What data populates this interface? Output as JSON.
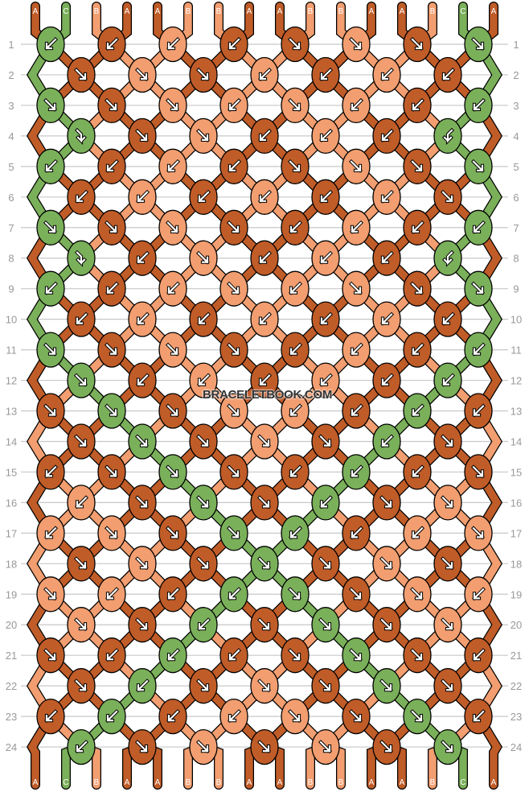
{
  "colors": {
    "A": "#c05c28",
    "B": "#f29e70",
    "C": "#7ab05a"
  },
  "watermark": "BRACELETBOOK.COM",
  "top_labels": [
    "A",
    "C",
    "B",
    "A",
    "A",
    "B",
    "B",
    "A",
    "A",
    "B",
    "B",
    "A",
    "A",
    "B",
    "C",
    "A"
  ],
  "bottom_labels": [
    "A",
    "C",
    "B",
    "A",
    "A",
    "B",
    "B",
    "A",
    "A",
    "B",
    "B",
    "A",
    "A",
    "B",
    "C",
    "A"
  ],
  "rows": [
    {
      "n": "1",
      "knots": [
        "C",
        "A",
        "B",
        "A",
        "A",
        "B",
        "A",
        "C"
      ],
      "dirs": [
        "L",
        "L",
        "L",
        "L",
        "R",
        "R",
        "R",
        "R"
      ]
    },
    {
      "n": "2",
      "knots": [
        "A",
        "B",
        "A",
        "B",
        "A",
        "B",
        "A"
      ],
      "dirs": [
        "R",
        "R",
        "R",
        "L",
        "L",
        "L",
        "L"
      ]
    },
    {
      "n": "3",
      "knots": [
        "C",
        "A",
        "B",
        "B",
        "B",
        "B",
        "A",
        "C"
      ],
      "dirs": [
        "R",
        "R",
        "R",
        "L",
        "R",
        "L",
        "L",
        "L"
      ]
    },
    {
      "n": "4",
      "knots": [
        "C",
        "A",
        "B",
        "A",
        "B",
        "A",
        "C"
      ],
      "dirs": [
        "RL",
        "R",
        "R",
        "L",
        "L",
        "L",
        "LR"
      ]
    },
    {
      "n": "5",
      "knots": [
        "C",
        "A",
        "B",
        "A",
        "A",
        "B",
        "A",
        "C"
      ],
      "dirs": [
        "L",
        "L",
        "L",
        "L",
        "R",
        "R",
        "R",
        "R"
      ]
    },
    {
      "n": "6",
      "knots": [
        "A",
        "B",
        "A",
        "B",
        "A",
        "B",
        "A"
      ],
      "dirs": [
        "L",
        "L",
        "L",
        "L",
        "L",
        "L",
        "R"
      ]
    },
    {
      "n": "7",
      "knots": [
        "C",
        "A",
        "B",
        "A",
        "A",
        "B",
        "A",
        "C"
      ],
      "dirs": [
        "R",
        "R",
        "R",
        "R",
        "L",
        "L",
        "L",
        "L"
      ]
    },
    {
      "n": "8",
      "knots": [
        "C",
        "A",
        "B",
        "A",
        "B",
        "A",
        "C"
      ],
      "dirs": [
        "RL",
        "L",
        "R",
        "L",
        "L",
        "L",
        "LR"
      ]
    },
    {
      "n": "9",
      "knots": [
        "C",
        "A",
        "B",
        "B",
        "B",
        "B",
        "A",
        "C"
      ],
      "dirs": [
        "L",
        "L",
        "L",
        "R",
        "L",
        "R",
        "R",
        "R"
      ]
    },
    {
      "n": "10",
      "knots": [
        "A",
        "B",
        "A",
        "B",
        "A",
        "B",
        "A"
      ],
      "dirs": [
        "L",
        "L",
        "L",
        "L",
        "L",
        "L",
        "L"
      ]
    },
    {
      "n": "11",
      "knots": [
        "C",
        "A",
        "B",
        "A",
        "A",
        "B",
        "A",
        "C"
      ],
      "dirs": [
        "R",
        "R",
        "R",
        "R",
        "L",
        "L",
        "L",
        "L"
      ]
    },
    {
      "n": "12",
      "knots": [
        "C",
        "A",
        "B",
        "A",
        "B",
        "A",
        "C"
      ],
      "dirs": [
        "R",
        "L",
        "L",
        "L",
        "L",
        "L",
        "L"
      ]
    },
    {
      "n": "13",
      "knots": [
        "A",
        "C",
        "A",
        "B",
        "B",
        "A",
        "C",
        "A"
      ],
      "dirs": [
        "R",
        "R",
        "R",
        "R",
        "L",
        "L",
        "L",
        "L"
      ]
    },
    {
      "n": "14",
      "knots": [
        "A",
        "C",
        "A",
        "B",
        "A",
        "C",
        "A"
      ],
      "dirs": [
        "R",
        "R",
        "R",
        "R",
        "R",
        "L",
        "R"
      ]
    },
    {
      "n": "15",
      "knots": [
        "A",
        "A",
        "C",
        "A",
        "A",
        "C",
        "A",
        "A"
      ],
      "dirs": [
        "L",
        "R",
        "R",
        "R",
        "L",
        "L",
        "L",
        "R"
      ]
    },
    {
      "n": "16",
      "knots": [
        "B",
        "A",
        "C",
        "A",
        "C",
        "A",
        "B"
      ],
      "dirs": [
        "L",
        "R",
        "R",
        "R",
        "L",
        "R",
        "R"
      ]
    },
    {
      "n": "17",
      "knots": [
        "B",
        "B",
        "A",
        "C",
        "C",
        "A",
        "B",
        "B"
      ],
      "dirs": [
        "L",
        "R",
        "R",
        "R",
        "L",
        "L",
        "L",
        "R"
      ]
    },
    {
      "n": "18",
      "knots": [
        "A",
        "B",
        "A",
        "C",
        "A",
        "B",
        "A"
      ],
      "dirs": [
        "R",
        "R",
        "R",
        "R",
        "R",
        "R",
        "R"
      ]
    },
    {
      "n": "19",
      "knots": [
        "B",
        "B",
        "A",
        "C",
        "C",
        "A",
        "B",
        "B"
      ],
      "dirs": [
        "R",
        "L",
        "L",
        "L",
        "R",
        "R",
        "R",
        "L"
      ]
    },
    {
      "n": "20",
      "knots": [
        "B",
        "A",
        "C",
        "A",
        "C",
        "A",
        "B"
      ],
      "dirs": [
        "R",
        "R",
        "L",
        "R",
        "R",
        "R",
        "R"
      ]
    },
    {
      "n": "21",
      "knots": [
        "A",
        "A",
        "C",
        "A",
        "A",
        "C",
        "A",
        "A"
      ],
      "dirs": [
        "R",
        "L",
        "L",
        "L",
        "R",
        "R",
        "R",
        "L"
      ]
    },
    {
      "n": "22",
      "knots": [
        "A",
        "C",
        "A",
        "B",
        "A",
        "C",
        "A"
      ],
      "dirs": [
        "R",
        "L",
        "R",
        "R",
        "R",
        "R",
        "R"
      ]
    },
    {
      "n": "23",
      "knots": [
        "A",
        "C",
        "A",
        "B",
        "B",
        "A",
        "C",
        "A"
      ],
      "dirs": [
        "L",
        "L",
        "L",
        "L",
        "R",
        "R",
        "R",
        "L"
      ]
    },
    {
      "n": "24",
      "knots": [
        "C",
        "A",
        "B",
        "A",
        "B",
        "A",
        "C"
      ],
      "dirs": [
        "L",
        "R",
        "R",
        "R",
        "R",
        "R",
        "R"
      ]
    }
  ]
}
